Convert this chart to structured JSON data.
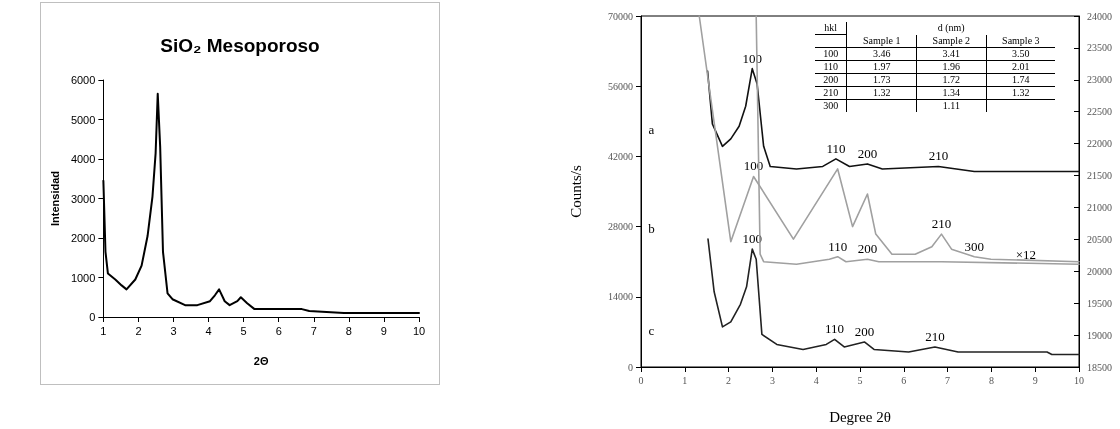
{
  "chart_data": [
    {
      "type": "line",
      "title": "SiO₂ Mesoporoso",
      "xlabel": "2Θ",
      "ylabel": "Intensidad",
      "xlim": [
        1,
        10
      ],
      "xticks": [
        1,
        2,
        3,
        4,
        5,
        6,
        7,
        8,
        9,
        10
      ],
      "ylim": [
        0,
        6000
      ],
      "yticks": [
        0,
        1000,
        2000,
        3000,
        4000,
        5000,
        6000
      ],
      "grid": false,
      "marker": "none",
      "line_style": "solid",
      "series": [
        {
          "color": "#000000",
          "x": [
            1.0,
            1.06,
            1.13,
            1.34,
            1.52,
            1.66,
            1.91,
            2.09,
            2.26,
            2.4,
            2.49,
            2.55,
            2.62,
            2.7,
            2.83,
            2.97,
            3.33,
            3.68,
            4.04,
            4.18,
            4.3,
            4.46,
            4.6,
            4.82,
            4.92,
            5.1,
            5.31,
            5.81,
            6.66,
            6.87,
            7.86,
            8.5,
            9.0,
            9.5,
            10.0
          ],
          "values": [
            3450,
            1650,
            1100,
            950,
            800,
            700,
            950,
            1300,
            2050,
            3050,
            4150,
            5650,
            4300,
            1650,
            600,
            450,
            300,
            300,
            400,
            550,
            700,
            400,
            300,
            400,
            500,
            350,
            200,
            200,
            200,
            150,
            100,
            100,
            100,
            100,
            100
          ]
        }
      ]
    },
    {
      "type": "line",
      "xlabel": "Degree 2θ",
      "ylabel": "Counts/s",
      "xlim": [
        0,
        10
      ],
      "xticks": [
        0,
        1,
        2,
        3,
        4,
        5,
        6,
        7,
        8,
        9,
        10
      ],
      "ylim": [
        0,
        70000
      ],
      "yticks": [
        0,
        14000,
        28000,
        42000,
        56000,
        70000
      ],
      "y2lim": [
        18500,
        24000
      ],
      "y2ticks": [
        18500,
        19000,
        19500,
        20000,
        20500,
        21000,
        21500,
        22000,
        22500,
        23000,
        23500,
        24000
      ],
      "grid": false,
      "marker": "none",
      "line_style": "solid",
      "series": [
        {
          "color": "#111111",
          "x": [
            1.52,
            1.63,
            1.86,
            2.05,
            2.24,
            2.39,
            2.54,
            2.65,
            2.8,
            2.95,
            3.55,
            4.15,
            4.45,
            4.76,
            5.17,
            5.51,
            6.79,
            7.61,
            10.0
          ],
          "values": [
            59000,
            48500,
            44000,
            45500,
            48000,
            52000,
            59500,
            56500,
            44000,
            40000,
            39500,
            40000,
            41500,
            40000,
            40500,
            39500,
            40000,
            39000,
            39000
          ]
        },
        {
          "color": "#a0a0a0",
          "x": [
            1.33,
            2.05,
            2.57,
            3.48,
            4.49,
            4.83,
            5.17,
            5.36,
            5.73,
            6.26,
            6.64,
            6.86,
            7.09,
            7.61,
            7.99,
            10.0
          ],
          "values": [
            70000,
            25000,
            38000,
            25500,
            39500,
            28000,
            34500,
            26500,
            22500,
            22500,
            24000,
            26500,
            23500,
            22000,
            21500,
            21000
          ]
        },
        {
          "color": "#a0a0a0",
          "x": [
            2.63,
            2.72,
            2.8,
            3.55,
            4.3,
            4.49,
            4.68,
            5.17,
            5.43,
            6.86,
            10.0
          ],
          "values": [
            70000,
            22500,
            21000,
            20500,
            21500,
            22000,
            21000,
            21500,
            21000,
            21000,
            20500
          ]
        },
        {
          "color": "#222222",
          "x": [
            1.53,
            1.67,
            1.86,
            2.05,
            2.27,
            2.41,
            2.54,
            2.63,
            2.76,
            3.1,
            3.7,
            4.23,
            4.42,
            4.64,
            5.1,
            5.32,
            6.11,
            6.71,
            7.24,
            9.27,
            9.38,
            10.0
          ],
          "values": [
            25500,
            15000,
            8000,
            9000,
            12500,
            16000,
            23500,
            21500,
            6500,
            4500,
            3500,
            4500,
            5500,
            4000,
            5000,
            3500,
            3000,
            4000,
            3000,
            3000,
            2500,
            2500
          ]
        }
      ],
      "annotations": [
        "hkl",
        "d (nm)",
        "Sample 1",
        "Sample 2",
        "Sample 3",
        "100",
        "3.46",
        "3.41",
        "3.50",
        "110",
        "1.97",
        "1.96",
        "2.01",
        "200",
        "1.73",
        "1.72",
        "1.74",
        "210",
        "1.32",
        "1.34",
        "1.32",
        "300",
        null,
        "1.11",
        null,
        "a",
        "b",
        "c",
        "×12",
        {
          "text": "100",
          "x": 2.54,
          "y": 59500
        },
        {
          "text": "110",
          "x": 4.45,
          "y": 41500
        },
        {
          "text": "200",
          "x": 5.17,
          "y": 40500
        },
        {
          "text": "210",
          "x": 6.79,
          "y": 40000
        },
        {
          "text": "100",
          "x": 2.57,
          "y": 38000
        },
        {
          "text": "110",
          "x": 4.49,
          "y": 22000
        },
        {
          "text": "200",
          "x": 5.17,
          "y": 21500
        },
        {
          "text": "210",
          "x": 6.86,
          "y": 26500
        },
        {
          "text": "300",
          "x": 7.61,
          "y": 22000
        },
        {
          "text": "100",
          "x": 2.54,
          "y": 23500
        },
        {
          "text": "110",
          "x": 4.42,
          "y": 5500
        },
        {
          "text": "200",
          "x": 5.1,
          "y": 5000
        },
        {
          "text": "210",
          "x": 6.71,
          "y": 4000
        }
      ]
    }
  ]
}
